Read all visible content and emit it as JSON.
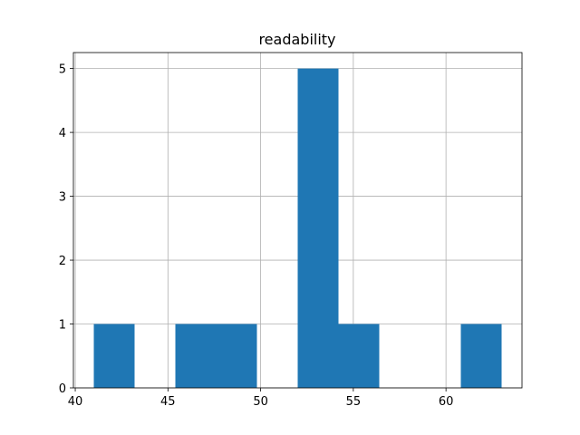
{
  "chart_data": {
    "type": "histogram",
    "title": "readability",
    "bins": [
      41,
      43.2,
      45.4,
      47.6,
      49.8,
      52,
      54.2,
      56.4,
      58.6,
      60.8,
      63
    ],
    "counts": [
      1,
      0,
      1,
      1,
      0,
      5,
      1,
      0,
      0,
      1
    ],
    "color": "#1f77b4",
    "xlim": [
      39.9,
      64.1
    ],
    "xticks": [
      40,
      45,
      50,
      55,
      60
    ],
    "ylim": [
      0,
      5.25
    ],
    "yticks": [
      0,
      1,
      2,
      3,
      4,
      5
    ],
    "grid": true
  }
}
